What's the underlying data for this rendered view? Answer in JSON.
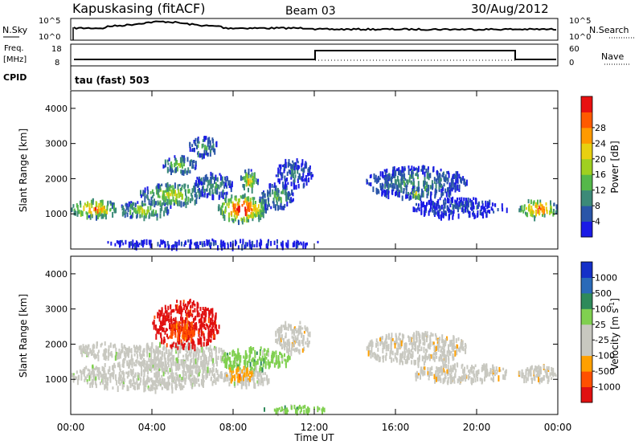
{
  "header": {
    "station": "Kapuskasing (fitACF)",
    "beam": "Beam 03",
    "date": "30/Aug/2012"
  },
  "top_panels": {
    "nsky_label": "N.Sky",
    "nsky_tick_top": "10^5",
    "nsky_tick_bottom": "10^0",
    "nsearch_label": "N.Search",
    "nsearch_tick_top": "10^5",
    "nsearch_tick_bottom": "10^0",
    "freq_label": "Freq.",
    "freq_unit": "[MHz]",
    "freq_tick_top": "18",
    "freq_tick_bottom": "8",
    "nave_label": "Nave",
    "nave_tick_top": "60",
    "nave_tick_bottom": "0",
    "cpid_label": "CPID",
    "cpid_value": "tau (fast) 503"
  },
  "chart_data": [
    {
      "type": "heatmap",
      "panel": "power",
      "xlabel": "",
      "ylabel": "Slant Range [km]",
      "ylim": [
        0,
        4500
      ],
      "yticks": [
        "1000",
        "2000",
        "3000",
        "4000"
      ],
      "colorbar_label": "Power [dB]",
      "colorbar_ticks": [
        "4",
        "8",
        "12",
        "16",
        "20",
        "24",
        "28"
      ],
      "colors": [
        "#1a1ae6",
        "#2a55a8",
        "#3c8a78",
        "#55b84a",
        "#a0d020",
        "#e8d010",
        "#ff9a00",
        "#ff5a00",
        "#e81010"
      ],
      "regions": [
        {
          "t0": 0.0,
          "t1": 2.3,
          "r0": 950,
          "r1": 1450,
          "level": 0.8
        },
        {
          "t0": 2.3,
          "t1": 4.8,
          "r0": 900,
          "r1": 1400,
          "level": 0.5
        },
        {
          "t0": 3.3,
          "t1": 6.5,
          "r0": 1300,
          "r1": 1900,
          "level": 0.55
        },
        {
          "t0": 4.5,
          "t1": 6.2,
          "r0": 2200,
          "r1": 2700,
          "level": 0.45
        },
        {
          "t0": 5.8,
          "t1": 7.2,
          "r0": 2700,
          "r1": 3250,
          "level": 0.35
        },
        {
          "t0": 6.0,
          "t1": 8.0,
          "r0": 1500,
          "r1": 2200,
          "level": 0.3
        },
        {
          "t0": 7.2,
          "t1": 9.6,
          "r0": 800,
          "r1": 1600,
          "level": 0.95
        },
        {
          "t0": 8.3,
          "t1": 9.2,
          "r0": 1700,
          "r1": 2300,
          "level": 0.6
        },
        {
          "t0": 9.2,
          "t1": 11.0,
          "r0": 1200,
          "r1": 1900,
          "level": 0.35
        },
        {
          "t0": 10.0,
          "t1": 11.9,
          "r0": 1800,
          "r1": 2600,
          "level": 0.2
        },
        {
          "t0": 14.5,
          "t1": 19.5,
          "r0": 1500,
          "r1": 2400,
          "level": 0.3
        },
        {
          "t0": 16.5,
          "t1": 17.4,
          "r0": 1450,
          "r1": 1800,
          "level": 0.5
        },
        {
          "t0": 16.8,
          "t1": 21.5,
          "r0": 950,
          "r1": 1500,
          "level": 0.15
        },
        {
          "t0": 22.0,
          "t1": 24.0,
          "r0": 950,
          "r1": 1450,
          "level": 0.85
        },
        {
          "t0": 1.5,
          "t1": 12.5,
          "r0": 100,
          "r1": 300,
          "level": 0.1
        }
      ]
    },
    {
      "type": "heatmap",
      "panel": "velocity",
      "xlabel": "Time UT",
      "ylabel": "Slant Range [km]",
      "ylim": [
        0,
        4500
      ],
      "yticks": [
        "1000",
        "2000",
        "3000",
        "4000"
      ],
      "xticks": [
        "00:00",
        "04:00",
        "08:00",
        "12:00",
        "16:00",
        "20:00",
        "00:00"
      ],
      "xlim_hours": [
        0,
        24
      ],
      "colorbar_label": "Velocity [m s",
      "colorbar_unit_exponent": "-1",
      "colorbar_close": "]",
      "colorbar_ticks": [
        "1000",
        "500",
        "100",
        "25",
        "-25",
        "-100",
        "-500",
        "-1000"
      ],
      "colors": [
        "#1530c8",
        "#2a6ab8",
        "#2e8a5a",
        "#80d050",
        "#c8c8c0",
        "#c8c8c0",
        "#ffa000",
        "#ff5000",
        "#e01010"
      ],
      "regions": [
        {
          "t0": 0.0,
          "t1": 7.5,
          "r0": 750,
          "r1": 1550,
          "cls": 4
        },
        {
          "t0": 2.2,
          "t1": 7.8,
          "r0": 1350,
          "r1": 2100,
          "cls": 4
        },
        {
          "t0": 4.0,
          "t1": 7.3,
          "r0": 1900,
          "r1": 3300,
          "cls": 8
        },
        {
          "t0": 4.8,
          "t1": 6.3,
          "r0": 2200,
          "r1": 2700,
          "cls": 7
        },
        {
          "t0": 7.3,
          "t1": 10.8,
          "r0": 1300,
          "r1": 1950,
          "cls": 3
        },
        {
          "t0": 7.3,
          "t1": 9.8,
          "r0": 850,
          "r1": 1300,
          "cls": 4
        },
        {
          "t0": 7.6,
          "t1": 9.0,
          "r0": 1000,
          "r1": 1400,
          "cls": 6
        },
        {
          "t0": 10.0,
          "t1": 11.8,
          "r0": 1800,
          "r1": 2700,
          "cls": 5
        },
        {
          "t0": 14.5,
          "t1": 19.5,
          "r0": 1500,
          "r1": 2400,
          "cls": 5
        },
        {
          "t0": 16.8,
          "t1": 21.5,
          "r0": 950,
          "r1": 1500,
          "cls": 5
        },
        {
          "t0": 22.0,
          "t1": 24.0,
          "r0": 950,
          "r1": 1450,
          "cls": 5
        },
        {
          "t0": 0.3,
          "t1": 3.0,
          "r0": 1650,
          "r1": 2100,
          "cls": 4
        },
        {
          "t0": 9.5,
          "t1": 12.5,
          "r0": 100,
          "r1": 300,
          "cls": 3
        }
      ]
    }
  ]
}
